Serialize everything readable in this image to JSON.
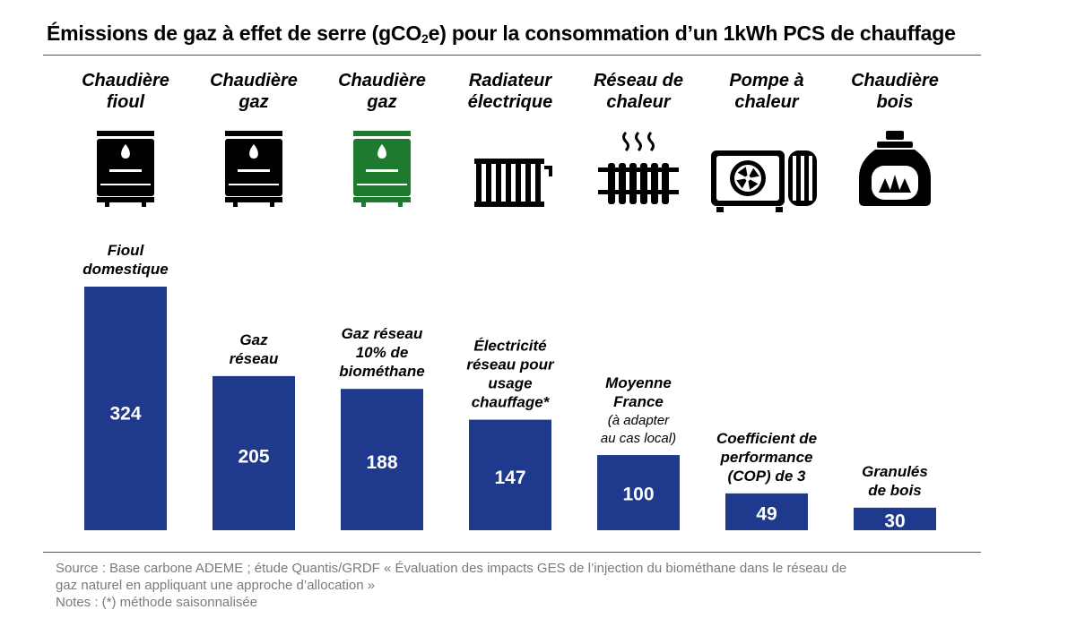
{
  "title": {
    "pre": "Émissions de gaz à effet de serre (gCO",
    "sub": "2",
    "post": "e) pour la consommation d’un 1kWh PCS de chauffage"
  },
  "colors": {
    "bar": "#1f3a8c",
    "bar_text": "#ffffff",
    "icon": "#000000",
    "icon_green": "#1e7a2e"
  },
  "chart_data": {
    "type": "bar",
    "title": "Émissions de gaz à effet de serre (gCO2e) pour la consommation d’un 1kWh PCS de chauffage",
    "xlabel": "",
    "ylabel": "",
    "grid": false,
    "legend": "none",
    "categories": [
      "Chaudière fioul",
      "Chaudière gaz",
      "Chaudière gaz",
      "Radiateur électrique",
      "Réseau de chaleur",
      "Pompe à chaleur",
      "Chaudière bois"
    ],
    "category_lines": [
      [
        "Chaudière",
        "fioul"
      ],
      [
        "Chaudière",
        "gaz"
      ],
      [
        "Chaudière",
        "gaz"
      ],
      [
        "Radiateur",
        "électrique"
      ],
      [
        "Réseau de",
        "chaleur"
      ],
      [
        "Pompe à",
        "chaleur"
      ],
      [
        "Chaudière",
        "bois"
      ]
    ],
    "icons": [
      "boiler-icon",
      "boiler-icon",
      "boiler-green-icon",
      "electric-radiator-icon",
      "heat-network-radiator-icon",
      "heat-pump-icon",
      "wood-boiler-icon"
    ],
    "bar_labels": [
      [
        "Fioul",
        "domestique"
      ],
      [
        "Gaz",
        "réseau"
      ],
      [
        "Gaz réseau",
        "10% de",
        "biométhane"
      ],
      [
        "Électricité",
        "réseau pour",
        "usage",
        "chauffage*"
      ],
      [
        "Moyenne",
        "France"
      ],
      [
        "Coefficient de",
        "performance",
        "(COP) de 3"
      ],
      [
        "Granulés",
        "de bois"
      ]
    ],
    "bar_notes": [
      [],
      [],
      [],
      [],
      [
        "(à adapter",
        "au cas local)"
      ],
      [],
      []
    ],
    "values": [
      324,
      205,
      188,
      147,
      100,
      49,
      30
    ]
  },
  "footer": {
    "source_line1": "Source : Base carbone ADEME ; étude Quantis/GRDF « Évaluation des impacts GES de l’injection du biométhane dans le réseau de",
    "source_line2": "gaz naturel en appliquant une approche d’allocation »",
    "notes": "Notes : (*) méthode saisonnalisée"
  }
}
